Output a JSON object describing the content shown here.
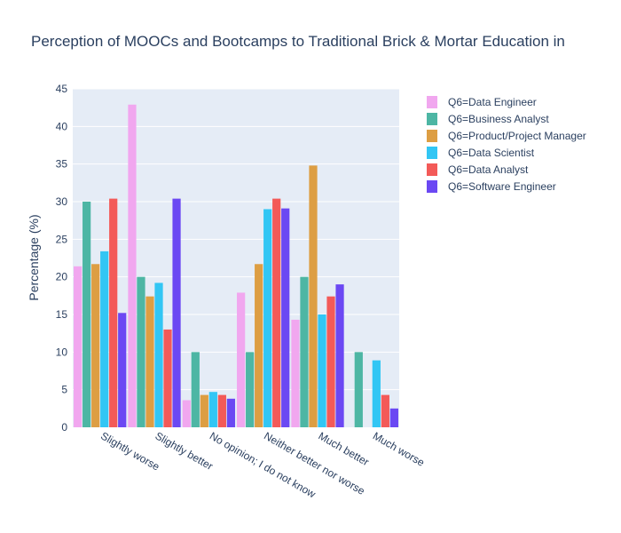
{
  "chart_data": {
    "type": "bar",
    "title": "Perception of MOOCs and Bootcamps to Traditional Brick & Mortar Education in",
    "xlabel": "",
    "ylabel": "Percentage (%)",
    "ylim": [
      0,
      45
    ],
    "yticks": [
      0,
      5,
      10,
      15,
      20,
      25,
      30,
      35,
      40,
      45
    ],
    "grid": true,
    "legend_position": "right",
    "categories": [
      "Slightly worse",
      "Slightly better",
      "No opinion; I do not know",
      "Neither better nor worse",
      "Much better",
      "Much worse"
    ],
    "series": [
      {
        "name": "Q6=Data Engineer",
        "color": "#f1a7ef",
        "values": [
          21.4,
          42.9,
          3.6,
          17.9,
          14.3,
          null
        ]
      },
      {
        "name": "Q6=Business Analyst",
        "color": "#4db6a4",
        "values": [
          30.0,
          20.0,
          10.0,
          10.0,
          20.0,
          10.0
        ]
      },
      {
        "name": "Q6=Product/Project Manager",
        "color": "#dd9e43",
        "values": [
          21.7,
          17.4,
          4.3,
          21.7,
          34.8,
          null
        ]
      },
      {
        "name": "Q6=Data Scientist",
        "color": "#32c6f4",
        "values": [
          23.4,
          19.2,
          4.7,
          29.0,
          15.0,
          8.9
        ]
      },
      {
        "name": "Q6=Data Analyst",
        "color": "#f35a58",
        "values": [
          30.4,
          13.0,
          4.3,
          30.4,
          17.4,
          4.3
        ]
      },
      {
        "name": "Q6=Software Engineer",
        "color": "#6b48f3",
        "values": [
          15.2,
          30.4,
          3.8,
          29.1,
          19.0,
          2.5
        ]
      }
    ]
  }
}
